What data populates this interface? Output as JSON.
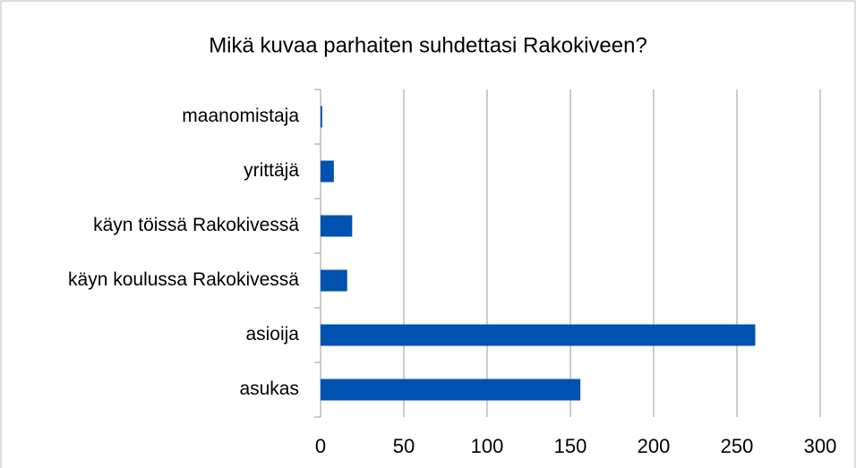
{
  "chart_data": {
    "type": "bar",
    "orientation": "horizontal",
    "title": "Mikä kuvaa parhaiten suhdettasi Rakokiveen?",
    "categories": [
      "maanomistaja",
      "yrittäjä",
      "käyn töissä Rakokivessä",
      "käyn koulussa Rakokivessä",
      "asioija",
      "asukas"
    ],
    "values": [
      1,
      8,
      19,
      16,
      261,
      156
    ],
    "color": "#0052b0",
    "xlim": [
      0,
      300
    ],
    "xticks": [
      0,
      50,
      100,
      150,
      200,
      250,
      300
    ],
    "grid": true
  }
}
